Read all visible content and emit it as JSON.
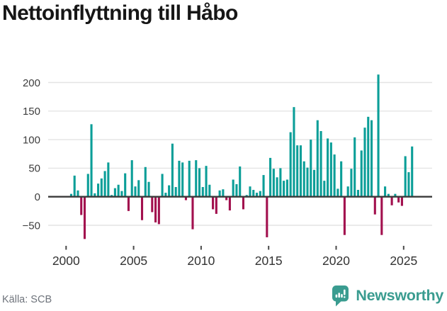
{
  "title": "Nettoinflyttning till Håbo",
  "source": "Källa: SCB",
  "branding": {
    "wordmark": "Newsworthy",
    "brand_color": "#3a9c90"
  },
  "colors": {
    "positive_bar": "#0b9e98",
    "negative_bar": "#a2104e",
    "gridline": "#e4e4e4",
    "zero_axis": "#3a3a3a",
    "tick_mark": "#4a4a4a",
    "y_label": "#3d3d3d",
    "x_label": "#333333",
    "title_color": "#161616",
    "source_color": "#6e737b"
  },
  "chart_data": {
    "type": "bar",
    "title": "Nettoinflyttning till Håbo",
    "frequency": "quarterly",
    "start_period": "2000Q1",
    "end_period": "2025Q3",
    "values_by_year": {
      "2000": [
        0,
        5,
        37,
        11
      ],
      "2001": [
        -32,
        -74,
        40,
        127
      ],
      "2002": [
        6,
        23,
        32,
        45
      ],
      "2003": [
        60,
        3,
        15,
        21
      ],
      "2004": [
        10,
        41,
        -25,
        64
      ],
      "2005": [
        18,
        29,
        -41,
        52
      ],
      "2006": [
        26,
        -27,
        -45,
        -48
      ],
      "2007": [
        40,
        7,
        20,
        93
      ],
      "2008": [
        17,
        63,
        60,
        -6
      ],
      "2009": [
        63,
        -57,
        64,
        50
      ],
      "2010": [
        17,
        54,
        21,
        -22
      ],
      "2011": [
        -30,
        11,
        13,
        -6
      ],
      "2012": [
        -24,
        30,
        22,
        53
      ],
      "2013": [
        -22,
        3,
        18,
        12
      ],
      "2014": [
        7,
        10,
        38,
        -71
      ],
      "2015": [
        68,
        49,
        34,
        50
      ],
      "2016": [
        28,
        30,
        113,
        157
      ],
      "2017": [
        90,
        90,
        62,
        51
      ],
      "2018": [
        100,
        47,
        134,
        115
      ],
      "2019": [
        28,
        102,
        95,
        74
      ],
      "2020": [
        14,
        62,
        -67,
        18
      ],
      "2021": [
        49,
        104,
        12,
        81
      ],
      "2022": [
        121,
        140,
        134,
        -31
      ],
      "2023": [
        214,
        -67,
        18,
        5
      ],
      "2024": [
        -15,
        5,
        -10,
        -16
      ],
      "2025": [
        71,
        43,
        88
      ]
    },
    "y_ticks": [
      {
        "value": 200,
        "label": "200"
      },
      {
        "value": 150,
        "label": "150"
      },
      {
        "value": 100,
        "label": "100"
      },
      {
        "value": 50,
        "label": "50"
      },
      {
        "value": 0,
        "label": "0"
      },
      {
        "value": -50,
        "label": "−50"
      }
    ],
    "x_ticks": [
      {
        "year": 2000,
        "label": "2000"
      },
      {
        "year": 2005,
        "label": "2005"
      },
      {
        "year": 2010,
        "label": "2010"
      },
      {
        "year": 2015,
        "label": "2015"
      },
      {
        "year": 2020,
        "label": "2020"
      },
      {
        "year": 2025,
        "label": "2025"
      }
    ],
    "ylim": [
      -85,
      225
    ],
    "grid": "horizontal",
    "legend": "none"
  }
}
